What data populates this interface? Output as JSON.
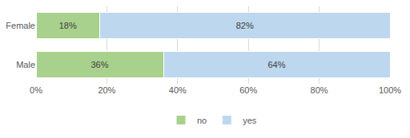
{
  "chart_data": {
    "type": "bar",
    "orientation": "horizontal",
    "stacked": true,
    "categories": [
      "Female",
      "Male"
    ],
    "series": [
      {
        "name": "no",
        "color": "#a9d18e",
        "values": [
          18,
          36
        ],
        "value_labels": [
          "18%",
          "36%"
        ]
      },
      {
        "name": "yes",
        "color": "#bdd7ee",
        "values": [
          82,
          64
        ],
        "value_labels": [
          "82%",
          "64%"
        ]
      }
    ],
    "xlim": [
      0,
      100
    ],
    "xticks": [
      {
        "value": 0,
        "label": "0%"
      },
      {
        "value": 20,
        "label": "20%"
      },
      {
        "value": 40,
        "label": "40%"
      },
      {
        "value": 60,
        "label": "60%"
      },
      {
        "value": 80,
        "label": "80%"
      },
      {
        "value": 100,
        "label": "100%"
      }
    ],
    "grid": true,
    "legend": "bottom",
    "data_labels": true
  }
}
